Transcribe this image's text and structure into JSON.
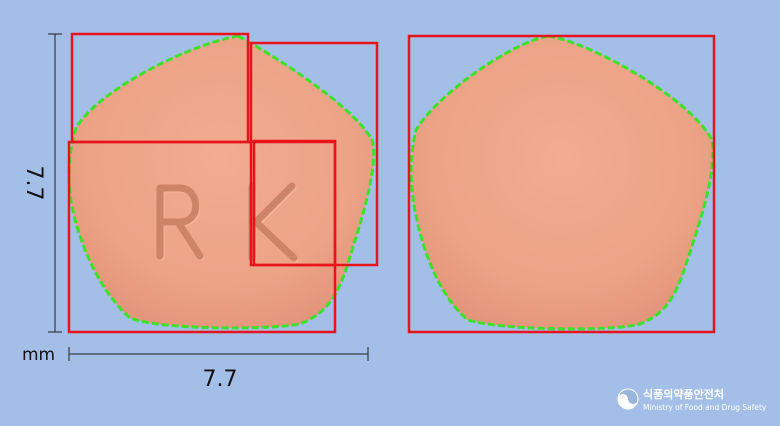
{
  "dimensions": {
    "height": "7.7",
    "width": "7.7",
    "unit": "mm"
  },
  "imprint": {
    "front": "RK",
    "back": ""
  },
  "colors": {
    "background": "#a3bfe8",
    "tablet": "#eca386",
    "detection_box": "#e8141b",
    "contour": "#3ee02a"
  },
  "logo": {
    "icon": "mfds-emblem-icon",
    "name_ko": "식품의약품안전처",
    "name_en": "Ministry of Food and Drug Safety"
  }
}
